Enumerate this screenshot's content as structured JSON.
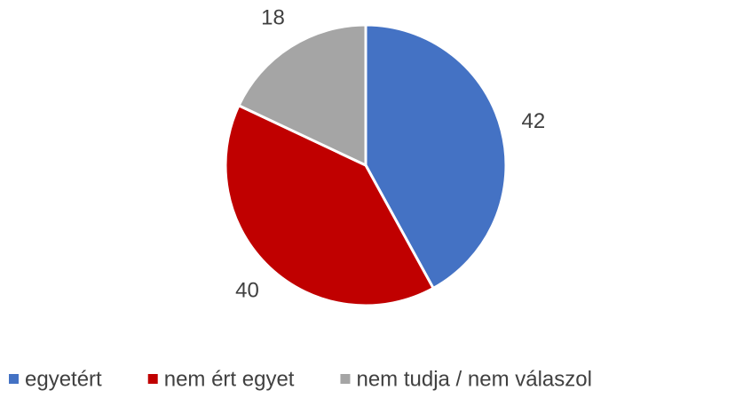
{
  "chart_data": {
    "type": "pie",
    "categories": [
      "egyetért",
      "nem ért egyet",
      "nem tudja / nem válaszol"
    ],
    "values": [
      42,
      40,
      18
    ],
    "colors": [
      "#4472c4",
      "#c00000",
      "#a5a5a5"
    ],
    "legend": "bottom"
  }
}
